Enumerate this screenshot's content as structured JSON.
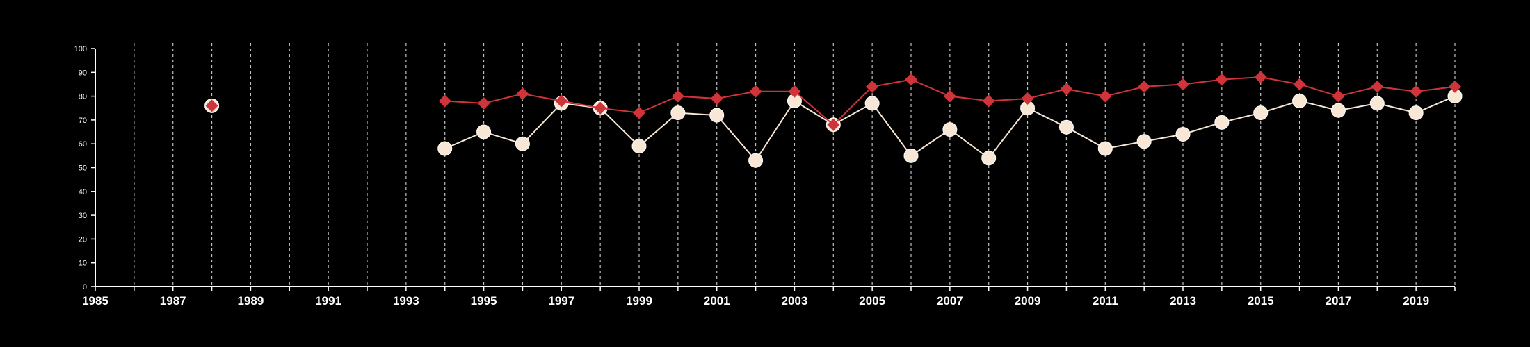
{
  "chart_data": {
    "type": "line",
    "title": "",
    "xlabel": "",
    "ylabel": "",
    "xlim": [
      1985,
      2020
    ],
    "ylim": [
      0,
      100
    ],
    "y_ticks": [
      0,
      10,
      20,
      30,
      40,
      50,
      60,
      70,
      80,
      90,
      100
    ],
    "x_tick_labels": [
      "1985",
      "1987",
      "1989",
      "1991",
      "1993",
      "1995",
      "1997",
      "1999",
      "2001",
      "2003",
      "2005",
      "2007",
      "2009",
      "2011",
      "2013",
      "2015",
      "2017",
      "2019"
    ],
    "vertical_grid": true,
    "legend": false,
    "series": [
      {
        "color": "#d0343b",
        "marker": "diamond",
        "points": [
          [
            1988,
            76
          ],
          [
            1994,
            78
          ],
          [
            1995,
            77
          ],
          [
            1996,
            81
          ],
          [
            1997,
            78
          ],
          [
            1998,
            75
          ],
          [
            1999,
            73
          ],
          [
            2000,
            80
          ],
          [
            2001,
            79
          ],
          [
            2002,
            82
          ],
          [
            2003,
            82
          ],
          [
            2004,
            68
          ],
          [
            2005,
            84
          ],
          [
            2006,
            87
          ],
          [
            2007,
            80
          ],
          [
            2008,
            78
          ],
          [
            2009,
            79
          ],
          [
            2010,
            83
          ],
          [
            2011,
            80
          ],
          [
            2012,
            84
          ],
          [
            2013,
            85
          ],
          [
            2014,
            87
          ],
          [
            2015,
            88
          ],
          [
            2016,
            85
          ],
          [
            2017,
            80
          ],
          [
            2018,
            84
          ],
          [
            2019,
            82
          ],
          [
            2020,
            84
          ]
        ]
      },
      {
        "color": "#f7e7d4",
        "marker": "circle",
        "points": [
          [
            1988,
            76
          ],
          [
            1994,
            58
          ],
          [
            1995,
            65
          ],
          [
            1996,
            60
          ],
          [
            1997,
            77
          ],
          [
            1998,
            75
          ],
          [
            1999,
            59
          ],
          [
            2000,
            73
          ],
          [
            2001,
            72
          ],
          [
            2002,
            53
          ],
          [
            2003,
            78
          ],
          [
            2004,
            68
          ],
          [
            2005,
            77
          ],
          [
            2006,
            55
          ],
          [
            2007,
            66
          ],
          [
            2008,
            54
          ],
          [
            2009,
            75
          ],
          [
            2010,
            67
          ],
          [
            2011,
            58
          ],
          [
            2012,
            61
          ],
          [
            2013,
            64
          ],
          [
            2014,
            69
          ],
          [
            2015,
            73
          ],
          [
            2016,
            78
          ],
          [
            2017,
            74
          ],
          [
            2018,
            77
          ],
          [
            2019,
            73
          ],
          [
            2020,
            80
          ]
        ]
      }
    ]
  }
}
